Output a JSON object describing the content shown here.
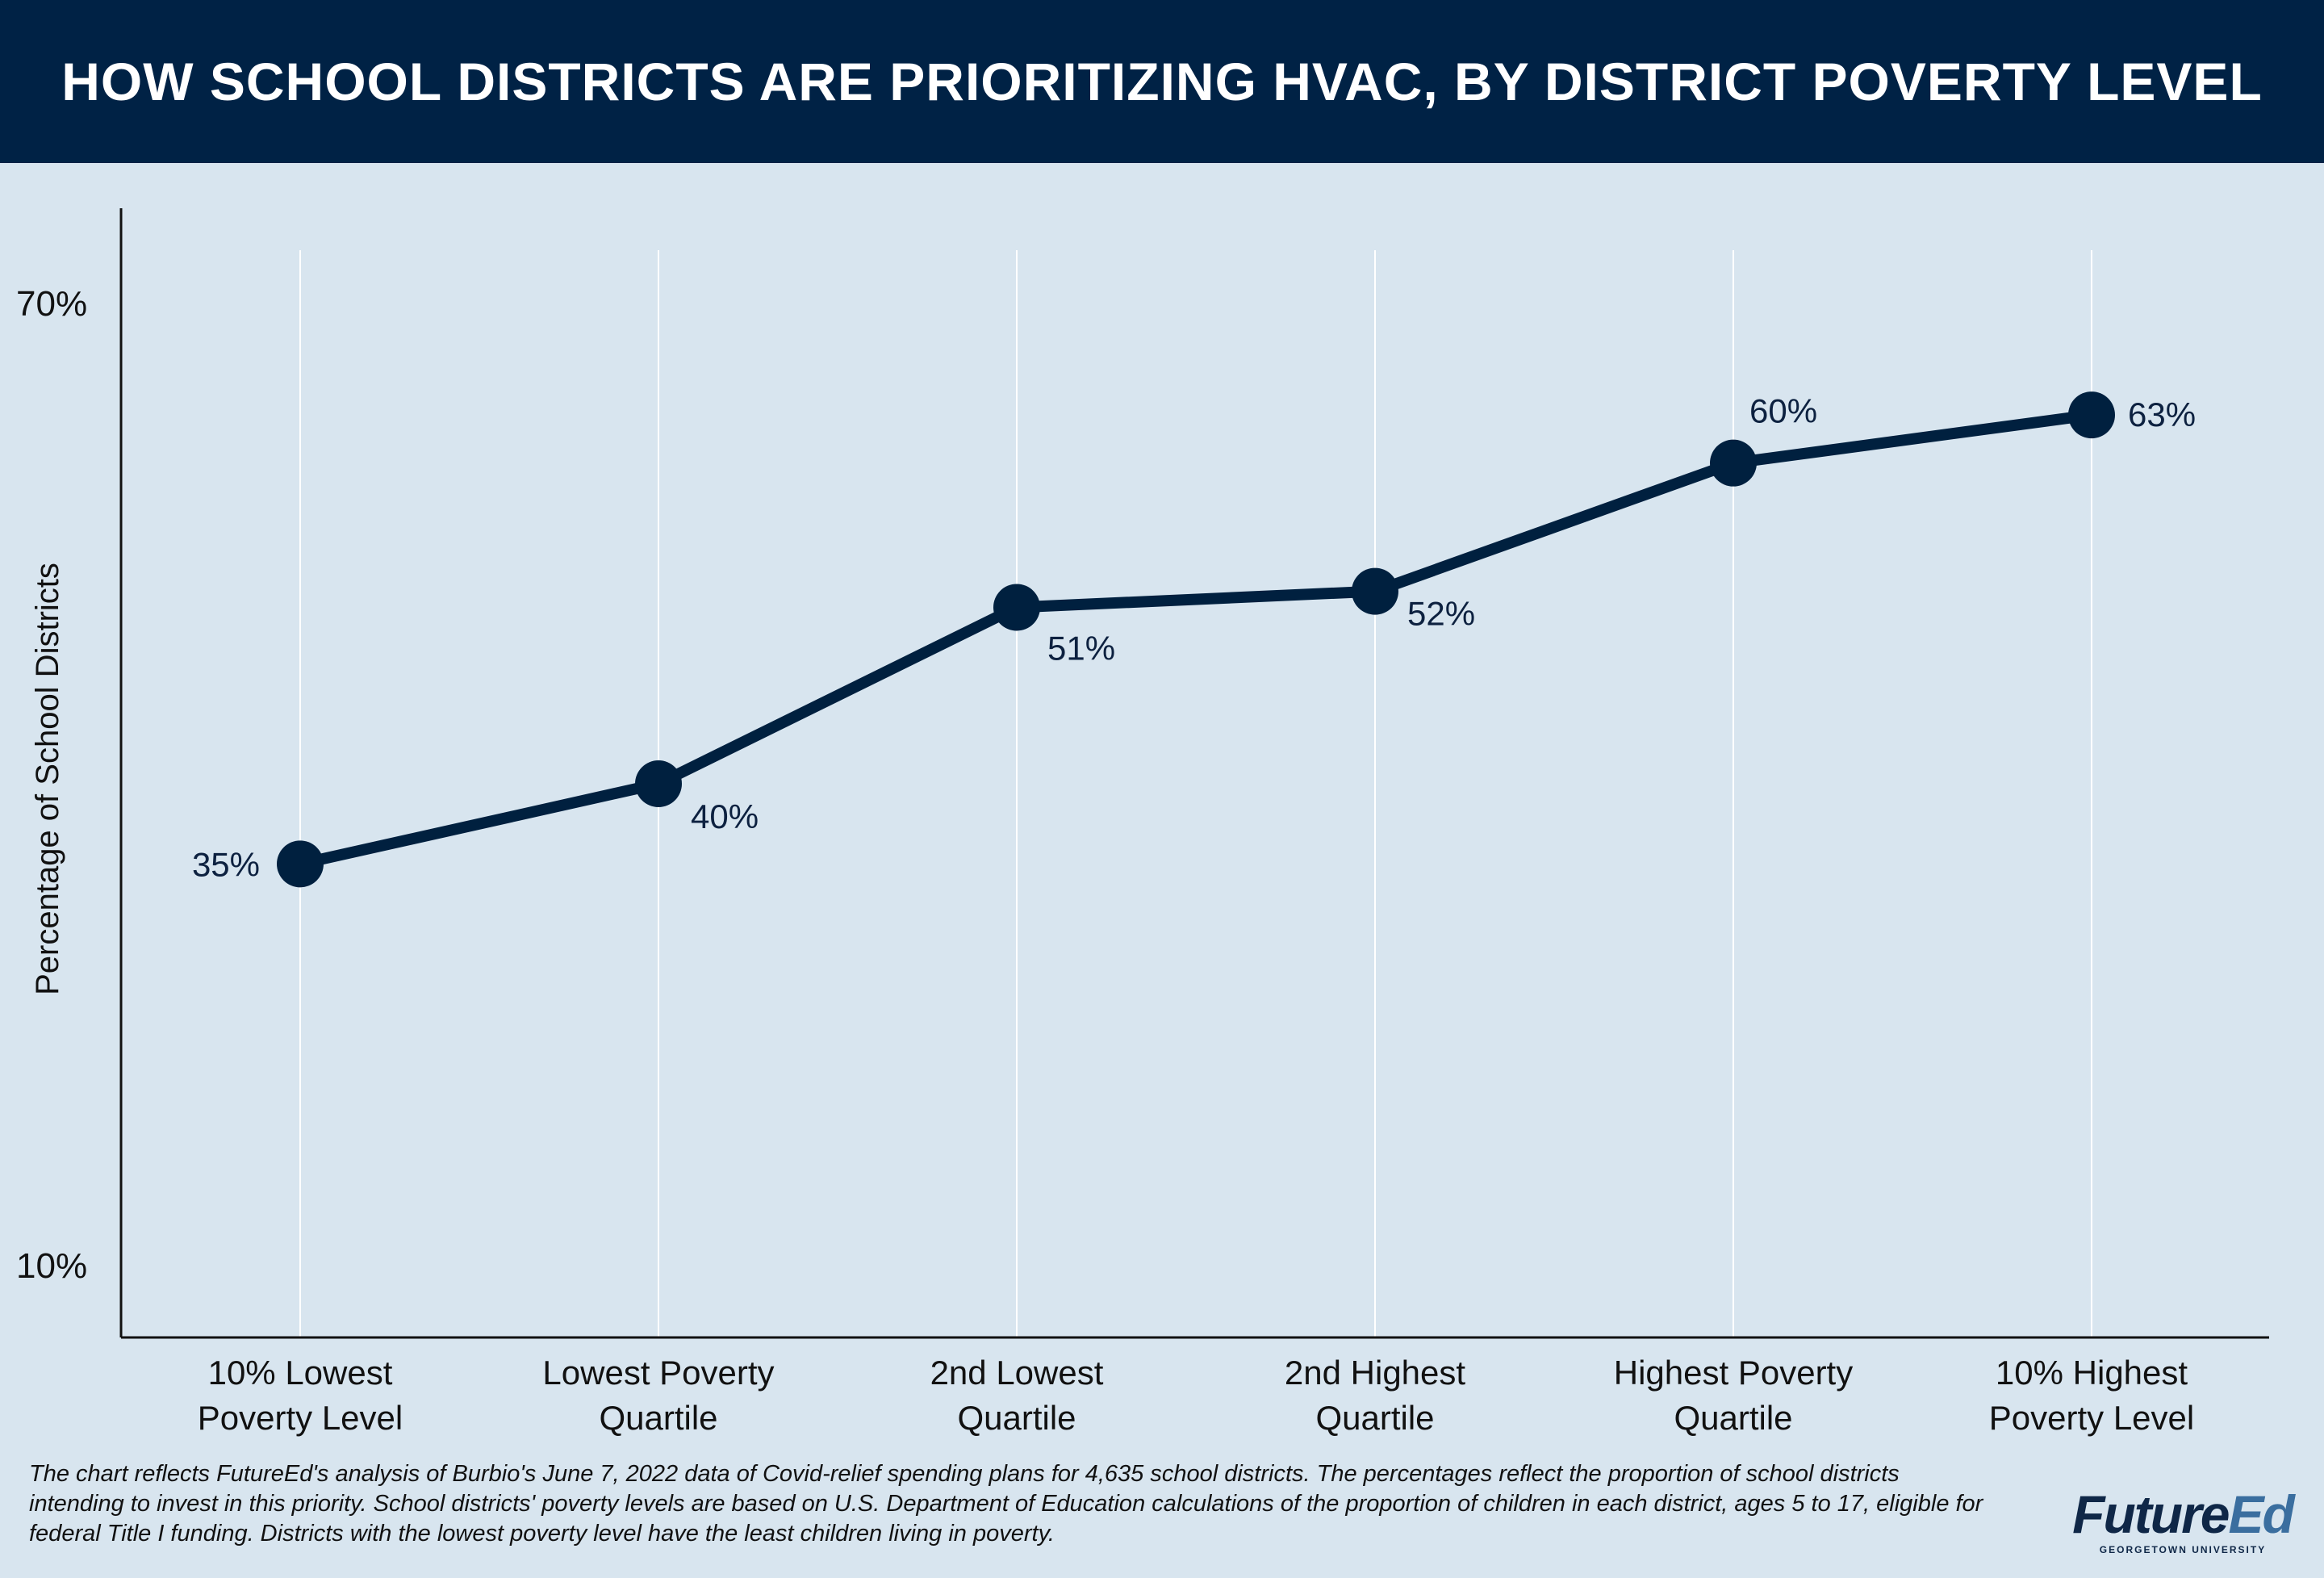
{
  "header": {
    "title": "HOW SCHOOL DISTRICTS ARE PRIORITIZING HVAC, BY DISTRICT POVERTY LEVEL"
  },
  "chart_data": {
    "type": "line",
    "title": "HOW SCHOOL DISTRICTS ARE PRIORITIZING HVAC, BY DISTRICT POVERTY LEVEL",
    "xlabel": "",
    "ylabel": "Percentage of School Districts",
    "categories": [
      [
        "10% Lowest",
        "Poverty Level"
      ],
      [
        "Lowest Poverty",
        "Quartile"
      ],
      [
        "2nd Lowest",
        "Quartile"
      ],
      [
        "2nd Highest",
        "Quartile"
      ],
      [
        "Highest Poverty",
        "Quartile"
      ],
      [
        "10% Highest",
        "Poverty Level"
      ]
    ],
    "values": [
      35,
      40,
      51,
      52,
      60,
      63
    ],
    "data_labels": [
      "35%",
      "40%",
      "51%",
      "52%",
      "60%",
      "63%"
    ],
    "ylim": [
      10,
      70
    ],
    "yticks": [
      10,
      70
    ],
    "ytick_labels": [
      "10%",
      "70%"
    ],
    "grid": "vertical",
    "legend": "none",
    "colors": {
      "line": "#00203f",
      "grid": "#ffffff",
      "axis": "#111111",
      "background": "#d8e5ef",
      "header": "#002245"
    }
  },
  "footnote": "The chart reflects FutureEd's analysis of Burbio's June 7, 2022 data of Covid-relief spending plans for 4,635 school districts. The percentages reflect the proportion of school districts intending to invest in this priority. School districts' poverty levels are based on U.S. Department of Education calculations of the proportion of children in each district, ages 5 to 17, eligible for federal Title I funding. Districts with the lowest poverty level have the least children living in poverty.",
  "logo": {
    "word_part1": "Future",
    "word_part2": "Ed",
    "subtitle": "GEORGETOWN UNIVERSITY"
  }
}
